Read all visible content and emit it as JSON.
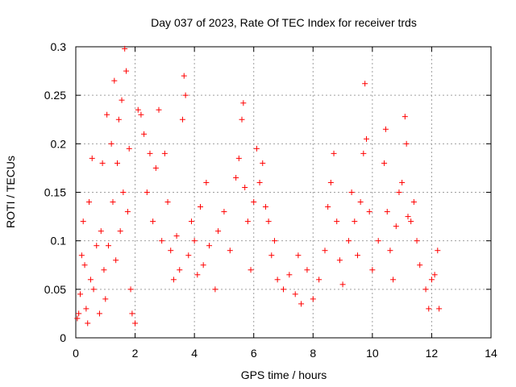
{
  "chart_data": {
    "type": "scatter",
    "title": "Day 037 of 2023, Rate Of TEC Index for receiver trds",
    "xlabel": "GPS time / hours",
    "ylabel": "ROTI / TECUs",
    "xlim": [
      0,
      14
    ],
    "ylim": [
      0,
      0.3
    ],
    "xticks": [
      0,
      2,
      4,
      6,
      8,
      10,
      12,
      14
    ],
    "yticks": [
      0,
      0.05,
      0.1,
      0.15,
      0.2,
      0.25,
      0.3
    ],
    "xtick_labels": [
      "0",
      "2",
      "4",
      "6",
      "8",
      "10",
      "12",
      "14"
    ],
    "ytick_labels": [
      "0",
      "0.05",
      "0.1",
      "0.15",
      "0.2",
      "0.25",
      "0.3"
    ],
    "grid": true,
    "marker": "+",
    "color": "#ff0000",
    "series": [
      {
        "points": [
          [
            0.05,
            0.02
          ],
          [
            0.1,
            0.025
          ],
          [
            0.15,
            0.045
          ],
          [
            0.2,
            0.085
          ],
          [
            0.25,
            0.12
          ],
          [
            0.3,
            0.075
          ],
          [
            0.35,
            0.03
          ],
          [
            0.4,
            0.015
          ],
          [
            0.45,
            0.14
          ],
          [
            0.5,
            0.06
          ],
          [
            0.55,
            0.185
          ],
          [
            0.6,
            0.05
          ],
          [
            0.7,
            0.095
          ],
          [
            0.8,
            0.025
          ],
          [
            0.85,
            0.11
          ],
          [
            0.9,
            0.18
          ],
          [
            0.95,
            0.07
          ],
          [
            1.0,
            0.04
          ],
          [
            1.05,
            0.23
          ],
          [
            1.1,
            0.095
          ],
          [
            1.2,
            0.2
          ],
          [
            1.25,
            0.14
          ],
          [
            1.3,
            0.265
          ],
          [
            1.35,
            0.08
          ],
          [
            1.4,
            0.18
          ],
          [
            1.45,
            0.225
          ],
          [
            1.5,
            0.11
          ],
          [
            1.55,
            0.245
          ],
          [
            1.6,
            0.15
          ],
          [
            1.65,
            0.298
          ],
          [
            1.7,
            0.275
          ],
          [
            1.75,
            0.13
          ],
          [
            1.8,
            0.195
          ],
          [
            1.85,
            0.05
          ],
          [
            1.9,
            0.025
          ],
          [
            2.0,
            0.015
          ],
          [
            2.1,
            0.235
          ],
          [
            2.2,
            0.23
          ],
          [
            2.3,
            0.21
          ],
          [
            2.4,
            0.15
          ],
          [
            2.5,
            0.19
          ],
          [
            2.6,
            0.12
          ],
          [
            2.7,
            0.175
          ],
          [
            2.8,
            0.235
          ],
          [
            2.9,
            0.1
          ],
          [
            3.0,
            0.19
          ],
          [
            3.1,
            0.14
          ],
          [
            3.2,
            0.09
          ],
          [
            3.3,
            0.06
          ],
          [
            3.4,
            0.105
          ],
          [
            3.5,
            0.07
          ],
          [
            3.6,
            0.225
          ],
          [
            3.65,
            0.27
          ],
          [
            3.7,
            0.25
          ],
          [
            3.8,
            0.085
          ],
          [
            3.9,
            0.12
          ],
          [
            4.0,
            0.1
          ],
          [
            4.1,
            0.065
          ],
          [
            4.2,
            0.135
          ],
          [
            4.3,
            0.075
          ],
          [
            4.4,
            0.16
          ],
          [
            4.5,
            0.095
          ],
          [
            4.7,
            0.05
          ],
          [
            4.8,
            0.11
          ],
          [
            5.0,
            0.13
          ],
          [
            5.2,
            0.09
          ],
          [
            5.4,
            0.165
          ],
          [
            5.5,
            0.185
          ],
          [
            5.6,
            0.225
          ],
          [
            5.65,
            0.242
          ],
          [
            5.7,
            0.155
          ],
          [
            5.8,
            0.12
          ],
          [
            5.9,
            0.07
          ],
          [
            6.0,
            0.14
          ],
          [
            6.1,
            0.195
          ],
          [
            6.2,
            0.16
          ],
          [
            6.3,
            0.18
          ],
          [
            6.4,
            0.135
          ],
          [
            6.5,
            0.12
          ],
          [
            6.6,
            0.085
          ],
          [
            6.7,
            0.1
          ],
          [
            6.8,
            0.06
          ],
          [
            7.0,
            0.05
          ],
          [
            7.2,
            0.065
          ],
          [
            7.4,
            0.045
          ],
          [
            7.5,
            0.085
          ],
          [
            7.6,
            0.035
          ],
          [
            7.8,
            0.07
          ],
          [
            8.0,
            0.04
          ],
          [
            8.2,
            0.06
          ],
          [
            8.4,
            0.09
          ],
          [
            8.5,
            0.135
          ],
          [
            8.6,
            0.16
          ],
          [
            8.7,
            0.19
          ],
          [
            8.8,
            0.12
          ],
          [
            8.9,
            0.08
          ],
          [
            9.0,
            0.055
          ],
          [
            9.2,
            0.1
          ],
          [
            9.3,
            0.15
          ],
          [
            9.4,
            0.12
          ],
          [
            9.5,
            0.085
          ],
          [
            9.6,
            0.14
          ],
          [
            9.7,
            0.19
          ],
          [
            9.75,
            0.262
          ],
          [
            9.8,
            0.205
          ],
          [
            9.9,
            0.13
          ],
          [
            10.0,
            0.07
          ],
          [
            10.2,
            0.1
          ],
          [
            10.4,
            0.18
          ],
          [
            10.45,
            0.215
          ],
          [
            10.5,
            0.13
          ],
          [
            10.6,
            0.09
          ],
          [
            10.7,
            0.06
          ],
          [
            10.8,
            0.115
          ],
          [
            10.9,
            0.15
          ],
          [
            11.0,
            0.16
          ],
          [
            11.1,
            0.228
          ],
          [
            11.15,
            0.2
          ],
          [
            11.2,
            0.125
          ],
          [
            11.3,
            0.12
          ],
          [
            11.4,
            0.14
          ],
          [
            11.5,
            0.1
          ],
          [
            11.6,
            0.075
          ],
          [
            11.8,
            0.05
          ],
          [
            11.9,
            0.03
          ],
          [
            12.0,
            0.06
          ],
          [
            12.1,
            0.065
          ],
          [
            12.2,
            0.09
          ],
          [
            12.25,
            0.03
          ]
        ]
      }
    ]
  }
}
